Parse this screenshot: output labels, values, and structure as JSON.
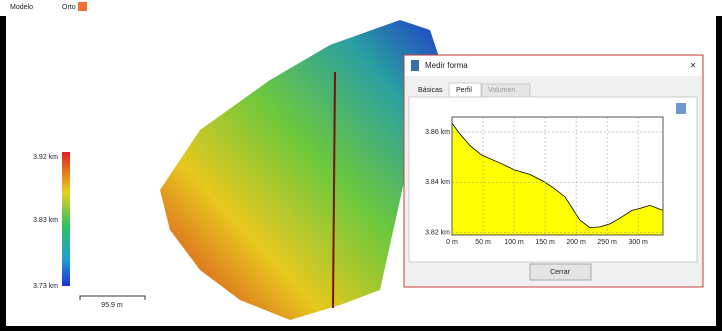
{
  "tabs": [
    "Modelo",
    "Orto"
  ],
  "legend": {
    "labels": [
      "3.92 km",
      "3.83 km",
      "3.73 km"
    ]
  },
  "scale_bar": "95.9 m",
  "dialog": {
    "title": "Medir forma",
    "close": "×",
    "tabs": [
      "Básicas",
      "Perfil",
      "Volumen"
    ],
    "button": "Cerrar",
    "chart_data": {
      "type": "area",
      "color": "#ffff00",
      "x": [
        0,
        13,
        29,
        48,
        77,
        100,
        126,
        150,
        166,
        182,
        194,
        206,
        222,
        239,
        255,
        271,
        290,
        303,
        319,
        340
      ],
      "values": [
        3.8635,
        3.8592,
        3.8546,
        3.8508,
        3.8477,
        3.845,
        3.8431,
        3.84,
        3.8373,
        3.8342,
        3.8296,
        3.825,
        3.8219,
        3.8223,
        3.8235,
        3.8258,
        3.8288,
        3.8296,
        3.8308,
        3.8288
      ],
      "xlim": [
        0,
        340
      ],
      "ylim": [
        3.819,
        3.866
      ],
      "xticks": [
        {
          "value": 0,
          "label": "0 m"
        },
        {
          "value": 50,
          "label": "50 m"
        },
        {
          "value": 100,
          "label": "100 m"
        },
        {
          "value": 150,
          "label": "150 m"
        },
        {
          "value": 200,
          "label": "200 m"
        },
        {
          "value": 250,
          "label": "250 m"
        },
        {
          "value": 300,
          "label": "300 m"
        }
      ],
      "yticks": [
        {
          "value": 3.82,
          "label": "3.82 km"
        },
        {
          "value": 3.84,
          "label": "3.84 km"
        },
        {
          "value": 3.86,
          "label": "3.86 km"
        }
      ],
      "grid": true
    }
  }
}
